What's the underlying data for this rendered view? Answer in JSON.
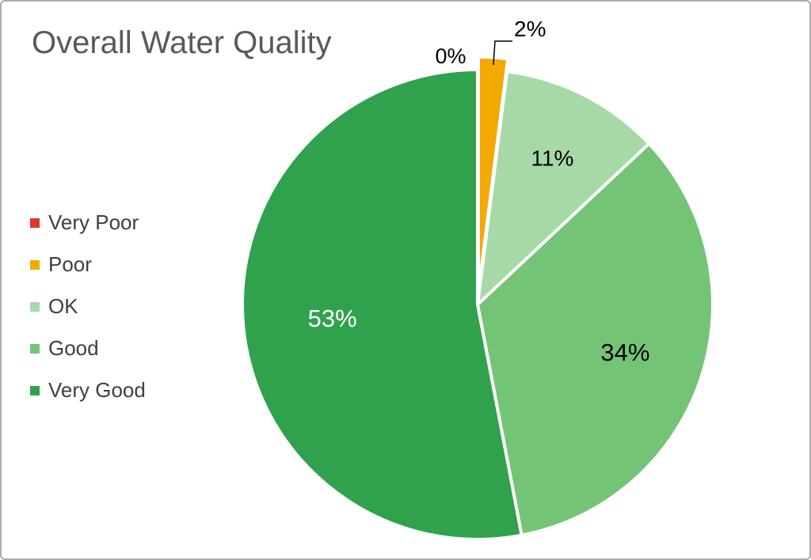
{
  "title": "Overall Water Quality",
  "chart_data": {
    "type": "pie",
    "title": "Overall Water Quality",
    "categories": [
      "Very Poor",
      "Poor",
      "OK",
      "Good",
      "Very Good"
    ],
    "values": [
      0,
      2,
      11,
      34,
      53
    ],
    "unit": "%",
    "labels": [
      "0%",
      "2%",
      "11%",
      "34%",
      "53%"
    ],
    "colors": [
      "#e0372b",
      "#f2a900",
      "#a6d9a6",
      "#74c476",
      "#30a24e"
    ],
    "label_colors": [
      "#000000",
      "#000000",
      "#000000",
      "#000000",
      "#ffffff"
    ],
    "slice_border_color": "#ffffff",
    "legend_position": "left",
    "start_angle_deg": 0,
    "direction": "clockwise",
    "exploded_slice": "Poor",
    "callout_slice": "Poor"
  }
}
